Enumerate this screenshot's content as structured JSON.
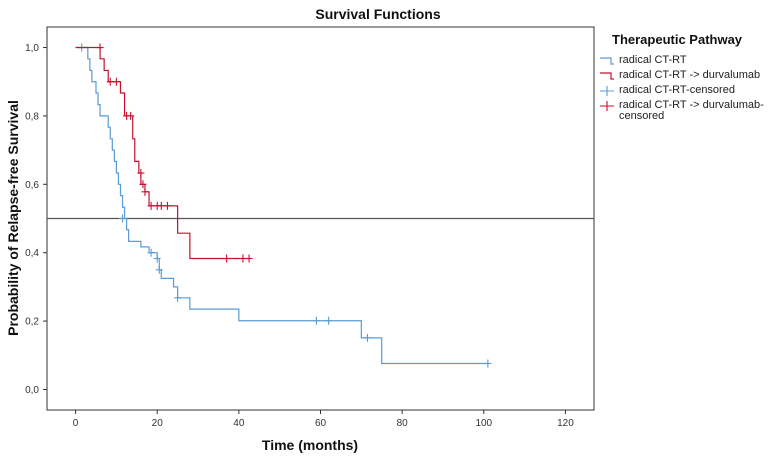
{
  "chart_data": {
    "type": "line",
    "subtype": "kaplan-meier step",
    "title": "Survival Functions",
    "xlabel": "Time (months)",
    "ylabel": "Probability of Relapse-free Survival",
    "xlim": [
      -7,
      127
    ],
    "ylim": [
      -0.06,
      1.06
    ],
    "x_ticks": [
      0,
      20,
      40,
      60,
      80,
      100,
      120
    ],
    "y_ticks": [
      0.0,
      0.2,
      0.4,
      0.6,
      0.8,
      1.0
    ],
    "y_tick_labels": [
      "0,0",
      "0,2",
      "0,4",
      "0,6",
      "0,8",
      "1,0"
    ],
    "x_tick_labels": [
      "0",
      "20",
      "40",
      "60",
      "80",
      "100",
      "120"
    ],
    "grid": false,
    "reference_line": {
      "y": 0.5,
      "color": "#555555"
    },
    "legend": {
      "title": "Therapeutic Pathway",
      "placement": "right",
      "entries": [
        {
          "label": "radical CT-RT",
          "kind": "line",
          "color": "#5b9bd5"
        },
        {
          "label": "radical CT-RT -> durvalumab",
          "kind": "line",
          "color": "#c8102e"
        },
        {
          "label": "radical CT-RT-censored",
          "kind": "censor",
          "color": "#5b9bd5"
        },
        {
          "label_lines": [
            "radical CT-RT -> durvalumab-",
            "censored"
          ],
          "kind": "censor",
          "color": "#c8102e"
        }
      ]
    },
    "series": [
      {
        "name": "radical CT-RT",
        "color": "#5b9bd5",
        "steps": [
          [
            0,
            1.0
          ],
          [
            3,
            0.967
          ],
          [
            3.5,
            0.933
          ],
          [
            4,
            0.9
          ],
          [
            5,
            0.867
          ],
          [
            5.5,
            0.833
          ],
          [
            6,
            0.8
          ],
          [
            8,
            0.767
          ],
          [
            8.5,
            0.733
          ],
          [
            9,
            0.7
          ],
          [
            9.5,
            0.667
          ],
          [
            10,
            0.633
          ],
          [
            10.5,
            0.6
          ],
          [
            11,
            0.567
          ],
          [
            11.5,
            0.533
          ],
          [
            12,
            0.5
          ],
          [
            12.5,
            0.467
          ],
          [
            13,
            0.433
          ],
          [
            16,
            0.417
          ],
          [
            18,
            0.4
          ],
          [
            20,
            0.383
          ],
          [
            20.5,
            0.35
          ],
          [
            21,
            0.325
          ],
          [
            24,
            0.3
          ],
          [
            25,
            0.268
          ],
          [
            28,
            0.235
          ],
          [
            40,
            0.201
          ],
          [
            70,
            0.151
          ],
          [
            75,
            0.076
          ]
        ],
        "end_x": 101,
        "censored": [
          [
            1.5,
            1.0
          ],
          [
            11.5,
            0.5
          ],
          [
            18.5,
            0.4
          ],
          [
            20,
            0.383
          ],
          [
            20.5,
            0.35
          ],
          [
            25,
            0.268
          ],
          [
            59,
            0.201
          ],
          [
            62,
            0.201
          ],
          [
            71.5,
            0.151
          ],
          [
            101,
            0.076
          ]
        ]
      },
      {
        "name": "radical CT-RT -> durvalumab",
        "color": "#c8102e",
        "steps": [
          [
            0,
            1.0
          ],
          [
            6,
            0.967
          ],
          [
            7,
            0.933
          ],
          [
            8,
            0.9
          ],
          [
            11,
            0.867
          ],
          [
            12,
            0.8
          ],
          [
            14,
            0.733
          ],
          [
            14.5,
            0.667
          ],
          [
            15.5,
            0.633
          ],
          [
            16,
            0.6
          ],
          [
            17,
            0.578
          ],
          [
            18,
            0.537
          ],
          [
            25,
            0.457
          ],
          [
            28,
            0.383
          ]
        ],
        "end_x": 43,
        "censored": [
          [
            6,
            1.0
          ],
          [
            8.5,
            0.9
          ],
          [
            10,
            0.9
          ],
          [
            12.5,
            0.8
          ],
          [
            13.5,
            0.8
          ],
          [
            16,
            0.633
          ],
          [
            16.5,
            0.6
          ],
          [
            17,
            0.578
          ],
          [
            18.5,
            0.537
          ],
          [
            20,
            0.537
          ],
          [
            21,
            0.537
          ],
          [
            22.5,
            0.537
          ],
          [
            37,
            0.383
          ],
          [
            41,
            0.383
          ],
          [
            42.5,
            0.383
          ]
        ]
      }
    ]
  }
}
